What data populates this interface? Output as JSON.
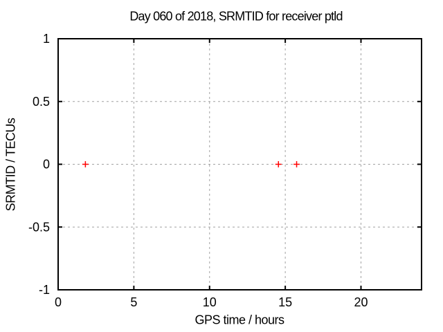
{
  "page": {
    "background": "#ffffff"
  },
  "chart_data": {
    "type": "scatter",
    "title": "Day 060 of 2018, SRMTID for receiver ptld",
    "xlabel": "GPS time / hours",
    "ylabel": "SRMTID / TECUs",
    "xlim": [
      0,
      24
    ],
    "ylim": [
      -1,
      1
    ],
    "xticks": [
      0,
      5,
      10,
      15,
      20
    ],
    "yticks": [
      -1,
      -0.5,
      0,
      0.5,
      1
    ],
    "grid": "dashed",
    "legend_position": "none",
    "colors": {
      "marker": "#ff0000",
      "grid": "#a0a0a0",
      "axis": "#000000",
      "text": "#000000",
      "background": "#ffffff"
    },
    "series": [
      {
        "name": "SRMTID",
        "marker": "plus",
        "color": "#ff0000",
        "points": [
          [
            1.8,
            0
          ],
          [
            14.55,
            0
          ],
          [
            15.75,
            0
          ]
        ]
      }
    ]
  }
}
